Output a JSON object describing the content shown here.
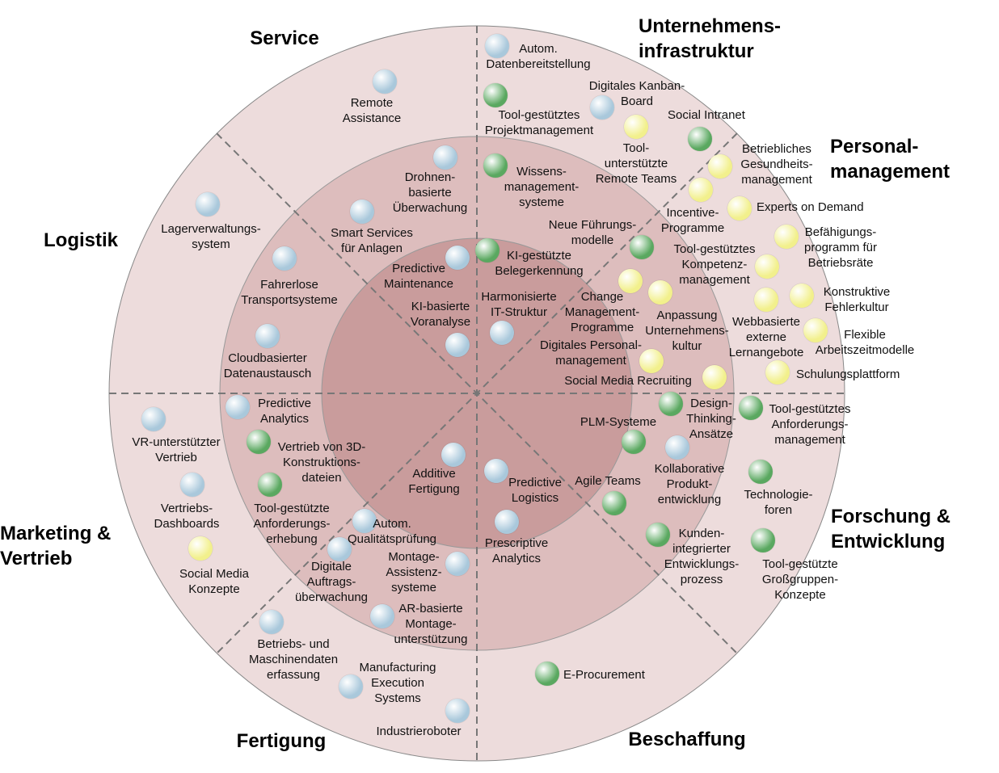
{
  "sectors": [
    {
      "title": "Service"
    },
    {
      "title": "Unternehmens-\ninfrastruktur"
    },
    {
      "title": "Personal-\nmanagement"
    },
    {
      "title": "Logistik"
    },
    {
      "title": "Marketing &\nVertrieb"
    },
    {
      "title": "Forschung &\nEntwicklung"
    },
    {
      "title": "Fertigung"
    },
    {
      "title": "Beschaffung"
    }
  ],
  "items": [
    {
      "label": "Autom.\nDatenbereitstellung",
      "color": "#a9c8db"
    },
    {
      "label": "Tool-gestütztes\nProjektmanagement",
      "color": "#5aa860"
    },
    {
      "label": "Digitales Kanban-\nBoard",
      "color": "#a9c8db"
    },
    {
      "label": "Social Intranet",
      "color": "#5aa860"
    },
    {
      "label": "Tool-\nunterstützte\nRemote Teams",
      "color": "#f2f08c"
    },
    {
      "label": "Betriebliches\nGesundheits-\nmanagement",
      "color": "#f2f08c"
    },
    {
      "label": "Wissens-\nmanagement-\nsysteme",
      "color": "#5aa860"
    },
    {
      "label": "Incentive-\nProgramme",
      "color": "#f2f08c"
    },
    {
      "label": "Experts on Demand",
      "color": "#f2f08c"
    },
    {
      "label": "Befähigungs-\nprogramm für\nBetriebsräte",
      "color": "#f2f08c"
    },
    {
      "label": "Neue Führungs-\nmodelle",
      "color": "#5aa860"
    },
    {
      "label": "KI-gestützte\nBelegerkennung",
      "color": "#5aa860"
    },
    {
      "label": "Tool-gestütztes\nKompetenz-\nmanagement",
      "color": "#f2f08c"
    },
    {
      "label": "Konstruktive\nFehlerkultur",
      "color": "#f2f08c"
    },
    {
      "label": "Change\nManagement-\nProgramme",
      "color": "#f2f08c"
    },
    {
      "label": "Anpassung\nUnternehmens-\nkultur",
      "color": "#f2f08c"
    },
    {
      "label": "Webbasierte\nexterne\nLernangebote",
      "color": "#f2f08c"
    },
    {
      "label": "Flexible\nArbeitszeitmodelle",
      "color": "#f2f08c"
    },
    {
      "label": "Digitales Personal-\nmanagement",
      "color": "#f2f08c"
    },
    {
      "label": "Social Media Recruiting",
      "color": "#f2f08c"
    },
    {
      "label": "Schulungsplattform",
      "color": "#f2f08c"
    },
    {
      "label": "Harmonisierte\nIT-Struktur",
      "color": "#a9c8db"
    },
    {
      "label": "Design-\nThinking-\nAnsätze",
      "color": "#5aa860"
    },
    {
      "label": "Tool-gestütztes\nAnforderungs-\nmanagement",
      "color": "#5aa860"
    },
    {
      "label": "PLM-Systeme",
      "color": "#5aa860"
    },
    {
      "label": "Kollaborative\nProdukt-\nentwicklung",
      "color": "#a9c8db"
    },
    {
      "label": "Technologie-\nforen",
      "color": "#5aa860"
    },
    {
      "label": "Agile Teams",
      "color": "#5aa860"
    },
    {
      "label": "Kunden-\nintegrierter\nEntwicklungs-\nprozess",
      "color": "#5aa860"
    },
    {
      "label": "Tool-gestützte\nGroßgruppen-\nKonzepte",
      "color": "#5aa860"
    },
    {
      "label": "E-Procurement",
      "color": "#5aa860"
    },
    {
      "label": "Predictive\nLogistics",
      "color": "#a9c8db"
    },
    {
      "label": "Prescriptive\nAnalytics",
      "color": "#a9c8db"
    },
    {
      "label": "Remote\nAssistance",
      "color": "#a9c8db"
    },
    {
      "label": "Drohnen-\nbasierte\nÜberwachung",
      "color": "#a9c8db"
    },
    {
      "label": "Smart Services\nfür Anlagen",
      "color": "#a9c8db"
    },
    {
      "label": "Lagerverwaltungs-\nsystem",
      "color": "#a9c8db"
    },
    {
      "label": "Fahrerlose\nTransportsysteme",
      "color": "#a9c8db"
    },
    {
      "label": "Predictive\nMaintenance",
      "color": "#a9c8db"
    },
    {
      "label": "KI-basierte\nVoranalyse",
      "color": "#a9c8db"
    },
    {
      "label": "Cloudbasierter\nDatenaustausch",
      "color": "#a9c8db"
    },
    {
      "label": "Predictive\nAnalytics",
      "color": "#a9c8db"
    },
    {
      "label": "Vertrieb von 3D-\nKonstruktions-\ndateien",
      "color": "#5aa860"
    },
    {
      "label": "VR-unterstützter\nVertrieb",
      "color": "#a9c8db"
    },
    {
      "label": "Additive\nFertigung",
      "color": "#a9c8db"
    },
    {
      "label": "Tool-gestützte\nAnforderungs-\nerhebung",
      "color": "#5aa860"
    },
    {
      "label": "Vertriebs-\nDashboards",
      "color": "#a9c8db"
    },
    {
      "label": "Autom.\nQualitätsprüfung",
      "color": "#a9c8db"
    },
    {
      "label": "Social Media\nKonzepte",
      "color": "#f2f08c"
    },
    {
      "label": "Digitale\nAuftrags-\nüberwachung",
      "color": "#a9c8db"
    },
    {
      "label": "Montage-\nAssistenz-\nsysteme",
      "color": "#a9c8db"
    },
    {
      "label": "AR-basierte\nMontage-\nunterstützung",
      "color": "#a9c8db"
    },
    {
      "label": "Betriebs- und\nMaschinendaten\nerfassung",
      "color": "#a9c8db"
    },
    {
      "label": "Manufacturing\nExecution\nSystems",
      "color": "#a9c8db"
    },
    {
      "label": "Industrieroboter",
      "color": "#a9c8db"
    }
  ]
}
